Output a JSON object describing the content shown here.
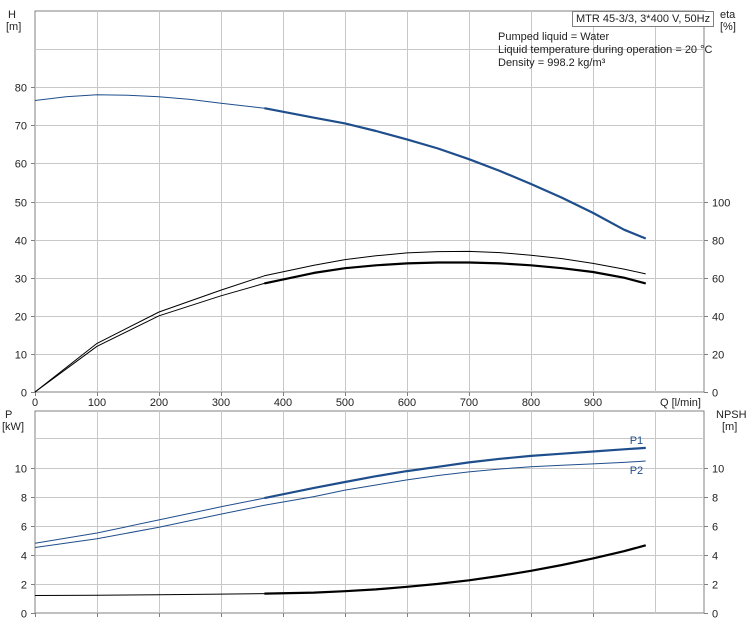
{
  "info": {
    "title": "MTR 45-3/3, 3*400 V, 50Hz",
    "lines": [
      "Pumped liquid = Water",
      "Liquid temperature during operation = 20 °C",
      "Density = 998.2 kg/m³"
    ]
  },
  "colors": {
    "blue": "#1f4e8c",
    "black": "#000000",
    "grid": "#c8c8c8",
    "frame": "#808080"
  },
  "chart_data": [
    {
      "type": "line",
      "x_label": "Q [l/min]",
      "xlim": [
        0,
        1000
      ],
      "x_ticks": [
        0,
        100,
        200,
        300,
        400,
        500,
        600,
        700,
        800,
        900
      ],
      "left_axis": {
        "label_top": "H",
        "label_unit": "[m]",
        "ylim": [
          0,
          90
        ],
        "ticks": [
          0,
          10,
          20,
          30,
          40,
          50,
          60,
          70,
          80
        ]
      },
      "right_axis": {
        "label_top": "eta",
        "label_unit": "[%]",
        "ylim": [
          0,
          180
        ],
        "ticks": [
          0,
          20,
          40,
          60,
          80,
          100
        ]
      },
      "grid": true,
      "series": [
        {
          "key": "H",
          "axis": "left",
          "color": "blue",
          "bold_from": 370,
          "x": [
            0,
            50,
            100,
            150,
            200,
            250,
            300,
            370,
            450,
            500,
            550,
            600,
            650,
            700,
            750,
            800,
            850,
            900,
            950,
            985
          ],
          "y": [
            76.5,
            77.5,
            78,
            77.9,
            77.5,
            76.8,
            75.8,
            74.5,
            72,
            70.5,
            68.5,
            66.3,
            63.9,
            61.1,
            58,
            54.6,
            51,
            47,
            42.6,
            40.3
          ]
        },
        {
          "key": "eta_upper",
          "axis": "right",
          "color": "black",
          "bold_from": null,
          "x": [
            0,
            100,
            200,
            300,
            370,
            450,
            500,
            550,
            600,
            650,
            700,
            750,
            800,
            850,
            900,
            950,
            985
          ],
          "y": [
            0,
            25.5,
            42,
            53.5,
            61,
            66.5,
            69.5,
            71.5,
            73,
            73.7,
            73.8,
            73.2,
            71.8,
            70,
            67.5,
            64.5,
            62
          ]
        },
        {
          "key": "eta_lower",
          "axis": "right",
          "color": "black",
          "bold_from": 370,
          "x": [
            0,
            100,
            200,
            300,
            370,
            450,
            500,
            550,
            600,
            650,
            700,
            750,
            800,
            850,
            900,
            950,
            985
          ],
          "y": [
            0,
            24,
            40,
            50.5,
            57,
            62.5,
            65,
            66.5,
            67.5,
            68,
            68,
            67.5,
            66.5,
            65,
            63,
            60,
            57
          ]
        }
      ]
    },
    {
      "type": "line",
      "x_label": "",
      "xlim": [
        0,
        1000
      ],
      "x_ticks": [
        0,
        100,
        200,
        300,
        400,
        500,
        600,
        700,
        800,
        900
      ],
      "left_axis": {
        "label_top": "P",
        "label_unit": "[kW]",
        "ylim": [
          0,
          12
        ],
        "ticks": [
          0,
          2,
          4,
          6,
          8,
          10
        ]
      },
      "right_axis": {
        "label_top": "NPSH",
        "label_unit": "[m]",
        "ylim": [
          0,
          12
        ],
        "ticks": [
          0,
          2,
          4,
          6,
          8,
          10
        ]
      },
      "grid": true,
      "series": [
        {
          "key": "P1",
          "name": "P1",
          "axis": "left",
          "color": "blue",
          "bold_from": 370,
          "x": [
            0,
            100,
            200,
            300,
            370,
            450,
            500,
            550,
            600,
            650,
            700,
            750,
            800,
            850,
            900,
            950,
            985
          ],
          "y": [
            4.8,
            5.5,
            6.4,
            7.3,
            7.9,
            8.6,
            9.0,
            9.4,
            9.75,
            10.05,
            10.35,
            10.6,
            10.8,
            10.95,
            11.1,
            11.25,
            11.35
          ]
        },
        {
          "key": "P2",
          "name": "P2",
          "axis": "left",
          "color": "blue",
          "bold_from": null,
          "x": [
            0,
            100,
            200,
            300,
            370,
            450,
            500,
            550,
            600,
            650,
            700,
            750,
            800,
            850,
            900,
            950,
            985
          ],
          "y": [
            4.5,
            5.1,
            5.9,
            6.8,
            7.4,
            8.0,
            8.45,
            8.8,
            9.15,
            9.45,
            9.7,
            9.9,
            10.05,
            10.15,
            10.25,
            10.35,
            10.45
          ]
        },
        {
          "key": "NPSH",
          "axis": "right",
          "color": "black",
          "bold_from": 370,
          "x": [
            0,
            100,
            200,
            300,
            370,
            450,
            500,
            550,
            600,
            650,
            700,
            750,
            800,
            850,
            900,
            950,
            985
          ],
          "y": [
            1.2,
            1.22,
            1.25,
            1.3,
            1.33,
            1.4,
            1.5,
            1.62,
            1.8,
            2.0,
            2.25,
            2.55,
            2.9,
            3.3,
            3.75,
            4.25,
            4.65
          ]
        }
      ]
    }
  ]
}
